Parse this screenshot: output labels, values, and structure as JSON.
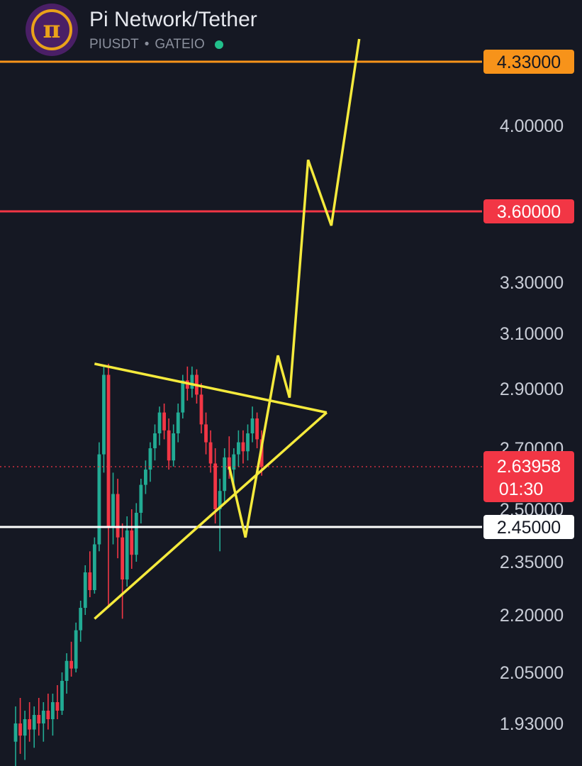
{
  "header": {
    "logo_icon": "pi-coin-icon",
    "logo_glyph": "π",
    "title": "Pi Network/Tether",
    "symbol": "PIUSDT",
    "separator": "•",
    "exchange": "GATEIO",
    "status_icon": "live-status-dot-icon",
    "status_color": "#22c08b"
  },
  "colors": {
    "background": "#151823",
    "bull": "#22ab94",
    "bear": "#f23645",
    "axis_text": "#c8ccd6",
    "drawing": "#f5ea3c",
    "resistance_high": "#f7931a",
    "resistance_mid": "#f23645",
    "support": "#ffffff"
  },
  "chart_data": {
    "type": "candlestick",
    "title": "Pi Network/Tether",
    "symbol": "PIUSDT",
    "exchange": "GATEIO",
    "ylim": [
      1.86,
      4.45
    ],
    "y_ticks": [
      "1.93000",
      "2.05000",
      "2.20000",
      "2.35000",
      "2.50000",
      "2.70000",
      "2.90000",
      "3.10000",
      "3.30000",
      "3.60000",
      "4.00000",
      "4.33000"
    ],
    "current_price": {
      "value": 2.63958,
      "label": "2.63958",
      "countdown": "01:30"
    },
    "horizontal_levels": [
      {
        "value": 4.33,
        "label": "4.33000",
        "color": "#f7931a"
      },
      {
        "value": 3.6,
        "label": "3.60000",
        "color": "#f23645"
      },
      {
        "value": 2.45,
        "label": "2.45000",
        "color": "#ffffff"
      }
    ],
    "candles": [
      {
        "o": 1.9,
        "h": 1.97,
        "l": 1.86,
        "c": 1.93
      },
      {
        "o": 1.93,
        "h": 1.99,
        "l": 1.88,
        "c": 1.91
      },
      {
        "o": 1.91,
        "h": 1.96,
        "l": 1.87,
        "c": 1.94
      },
      {
        "o": 1.94,
        "h": 1.98,
        "l": 1.9,
        "c": 1.92
      },
      {
        "o": 1.92,
        "h": 1.97,
        "l": 1.89,
        "c": 1.95
      },
      {
        "o": 1.95,
        "h": 1.99,
        "l": 1.91,
        "c": 1.93
      },
      {
        "o": 1.93,
        "h": 1.98,
        "l": 1.9,
        "c": 1.96
      },
      {
        "o": 1.96,
        "h": 2.0,
        "l": 1.92,
        "c": 1.94
      },
      {
        "o": 1.94,
        "h": 2.0,
        "l": 1.91,
        "c": 1.98
      },
      {
        "o": 1.98,
        "h": 2.02,
        "l": 1.94,
        "c": 1.96
      },
      {
        "o": 1.96,
        "h": 2.05,
        "l": 1.95,
        "c": 2.03
      },
      {
        "o": 2.03,
        "h": 2.1,
        "l": 2.0,
        "c": 2.08
      },
      {
        "o": 2.08,
        "h": 2.13,
        "l": 2.04,
        "c": 2.06
      },
      {
        "o": 2.06,
        "h": 2.18,
        "l": 2.05,
        "c": 2.16
      },
      {
        "o": 2.16,
        "h": 2.24,
        "l": 2.13,
        "c": 2.22
      },
      {
        "o": 2.22,
        "h": 2.34,
        "l": 2.2,
        "c": 2.32
      },
      {
        "o": 2.32,
        "h": 2.38,
        "l": 2.25,
        "c": 2.27
      },
      {
        "o": 2.27,
        "h": 2.42,
        "l": 2.26,
        "c": 2.4
      },
      {
        "o": 2.4,
        "h": 2.72,
        "l": 2.38,
        "c": 2.68
      },
      {
        "o": 2.68,
        "h": 2.98,
        "l": 2.62,
        "c": 2.95
      },
      {
        "o": 2.95,
        "h": 2.99,
        "l": 2.22,
        "c": 2.45
      },
      {
        "o": 2.45,
        "h": 2.62,
        "l": 2.4,
        "c": 2.55
      },
      {
        "o": 2.55,
        "h": 2.6,
        "l": 2.36,
        "c": 2.42
      },
      {
        "o": 2.42,
        "h": 2.46,
        "l": 2.19,
        "c": 2.3
      },
      {
        "o": 2.3,
        "h": 2.48,
        "l": 2.28,
        "c": 2.44
      },
      {
        "o": 2.44,
        "h": 2.5,
        "l": 2.33,
        "c": 2.37
      },
      {
        "o": 2.37,
        "h": 2.52,
        "l": 2.35,
        "c": 2.49
      },
      {
        "o": 2.49,
        "h": 2.6,
        "l": 2.46,
        "c": 2.58
      },
      {
        "o": 2.58,
        "h": 2.66,
        "l": 2.55,
        "c": 2.63
      },
      {
        "o": 2.63,
        "h": 2.72,
        "l": 2.59,
        "c": 2.7
      },
      {
        "o": 2.7,
        "h": 2.78,
        "l": 2.66,
        "c": 2.75
      },
      {
        "o": 2.75,
        "h": 2.84,
        "l": 2.71,
        "c": 2.82
      },
      {
        "o": 2.82,
        "h": 2.85,
        "l": 2.73,
        "c": 2.76
      },
      {
        "o": 2.76,
        "h": 2.8,
        "l": 2.63,
        "c": 2.66
      },
      {
        "o": 2.66,
        "h": 2.78,
        "l": 2.64,
        "c": 2.75
      },
      {
        "o": 2.75,
        "h": 2.85,
        "l": 2.72,
        "c": 2.82
      },
      {
        "o": 2.82,
        "h": 2.95,
        "l": 2.8,
        "c": 2.93
      },
      {
        "o": 2.93,
        "h": 2.98,
        "l": 2.86,
        "c": 2.9
      },
      {
        "o": 2.9,
        "h": 2.98,
        "l": 2.87,
        "c": 2.95
      },
      {
        "o": 2.95,
        "h": 2.97,
        "l": 2.85,
        "c": 2.88
      },
      {
        "o": 2.88,
        "h": 2.92,
        "l": 2.75,
        "c": 2.78
      },
      {
        "o": 2.78,
        "h": 2.82,
        "l": 2.68,
        "c": 2.72
      },
      {
        "o": 2.72,
        "h": 2.76,
        "l": 2.62,
        "c": 2.65
      },
      {
        "o": 2.65,
        "h": 2.7,
        "l": 2.46,
        "c": 2.5
      },
      {
        "o": 2.5,
        "h": 2.6,
        "l": 2.38,
        "c": 2.56
      },
      {
        "o": 2.56,
        "h": 2.7,
        "l": 2.52,
        "c": 2.67
      },
      {
        "o": 2.67,
        "h": 2.74,
        "l": 2.6,
        "c": 2.63
      },
      {
        "o": 2.63,
        "h": 2.7,
        "l": 2.57,
        "c": 2.68
      },
      {
        "o": 2.68,
        "h": 2.76,
        "l": 2.64,
        "c": 2.72
      },
      {
        "o": 2.72,
        "h": 2.76,
        "l": 2.65,
        "c": 2.69
      },
      {
        "o": 2.69,
        "h": 2.78,
        "l": 2.66,
        "c": 2.75
      },
      {
        "o": 2.75,
        "h": 2.84,
        "l": 2.72,
        "c": 2.8
      },
      {
        "o": 2.8,
        "h": 2.82,
        "l": 2.7,
        "c": 2.73
      },
      {
        "o": 2.73,
        "h": 2.76,
        "l": 2.61,
        "c": 2.64
      }
    ],
    "annotations": {
      "triangle_upper_trendline": [
        {
          "x": 0,
          "y": 2.99
        },
        {
          "x": 50,
          "y": 2.82
        }
      ],
      "triangle_lower_trendline": [
        {
          "x": 0,
          "y": 2.19
        },
        {
          "x": 50,
          "y": 2.82
        }
      ],
      "projected_path": [
        {
          "x": 29,
          "y": 2.64
        },
        {
          "x": 32.5,
          "y": 2.42
        },
        {
          "x": 39.5,
          "y": 3.02
        },
        {
          "x": 42,
          "y": 2.87
        },
        {
          "x": 46,
          "y": 3.84
        },
        {
          "x": 51,
          "y": 3.54
        },
        {
          "x": 57,
          "y": 4.45
        }
      ]
    }
  }
}
